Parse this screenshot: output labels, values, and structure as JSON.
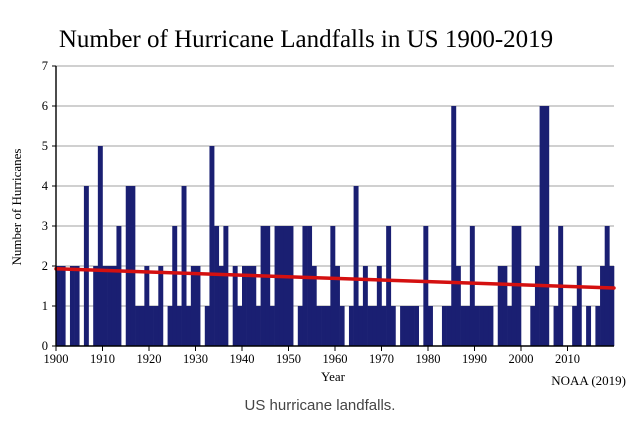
{
  "chart_data": {
    "type": "bar",
    "title": "Number of Hurricane Landfalls in US 1900-2019",
    "xlabel": "Year",
    "ylabel": "Number of Hurricanes",
    "source": "NOAA (2019)",
    "x_start": 1900,
    "x_end": 2019,
    "xlim": [
      1900,
      2019
    ],
    "ylim": [
      0,
      7
    ],
    "xticks": [
      "1900",
      "1910",
      "1920",
      "1930",
      "1940",
      "1950",
      "1960",
      "1970",
      "1980",
      "1990",
      "2000",
      "2010"
    ],
    "yticks": [
      "0",
      "1",
      "2",
      "3",
      "4",
      "5",
      "6",
      "7"
    ],
    "grid": true,
    "years": [
      1900,
      1901,
      1902,
      1903,
      1904,
      1905,
      1906,
      1907,
      1908,
      1909,
      1910,
      1911,
      1912,
      1913,
      1914,
      1915,
      1916,
      1917,
      1918,
      1919,
      1920,
      1921,
      1922,
      1923,
      1924,
      1925,
      1926,
      1927,
      1928,
      1929,
      1930,
      1931,
      1932,
      1933,
      1934,
      1935,
      1936,
      1937,
      1938,
      1939,
      1940,
      1941,
      1942,
      1943,
      1944,
      1945,
      1946,
      1947,
      1948,
      1949,
      1950,
      1951,
      1952,
      1953,
      1954,
      1955,
      1956,
      1957,
      1958,
      1959,
      1960,
      1961,
      1962,
      1963,
      1964,
      1965,
      1966,
      1967,
      1968,
      1969,
      1970,
      1971,
      1972,
      1973,
      1974,
      1975,
      1976,
      1977,
      1978,
      1979,
      1980,
      1981,
      1982,
      1983,
      1984,
      1985,
      1986,
      1987,
      1988,
      1989,
      1990,
      1991,
      1992,
      1993,
      1994,
      1995,
      1996,
      1997,
      1998,
      1999,
      2000,
      2001,
      2002,
      2003,
      2004,
      2005,
      2006,
      2007,
      2008,
      2009,
      2010,
      2011,
      2012,
      2013,
      2014,
      2015,
      2016,
      2017,
      2018,
      2019
    ],
    "values": [
      2,
      2,
      0,
      2,
      2,
      0,
      4,
      0,
      2,
      5,
      2,
      2,
      2,
      3,
      0,
      4,
      4,
      1,
      1,
      2,
      1,
      1,
      2,
      0,
      1,
      3,
      1,
      4,
      1,
      2,
      2,
      0,
      1,
      5,
      3,
      2,
      3,
      0,
      2,
      1,
      2,
      2,
      2,
      1,
      3,
      3,
      1,
      3,
      3,
      3,
      3,
      0,
      1,
      3,
      3,
      2,
      1,
      1,
      1,
      3,
      2,
      1,
      0,
      1,
      4,
      1,
      2,
      1,
      1,
      2,
      1,
      3,
      1,
      0,
      1,
      1,
      1,
      1,
      0,
      3,
      1,
      0,
      0,
      1,
      1,
      6,
      2,
      1,
      1,
      3,
      1,
      1,
      1,
      1,
      0,
      2,
      2,
      1,
      3,
      3,
      0,
      0,
      1,
      2,
      6,
      6,
      0,
      1,
      3,
      0,
      0,
      1,
      2,
      0,
      1,
      0,
      1,
      2,
      3,
      2
    ],
    "trend": {
      "start_year": 1900,
      "end_year": 2019,
      "start_value": 1.93,
      "end_value": 1.45,
      "color": "#d41010"
    },
    "bar_color": "#1a1f72",
    "grid_color": "#a0a0a0"
  },
  "caption": "US hurricane landfalls."
}
